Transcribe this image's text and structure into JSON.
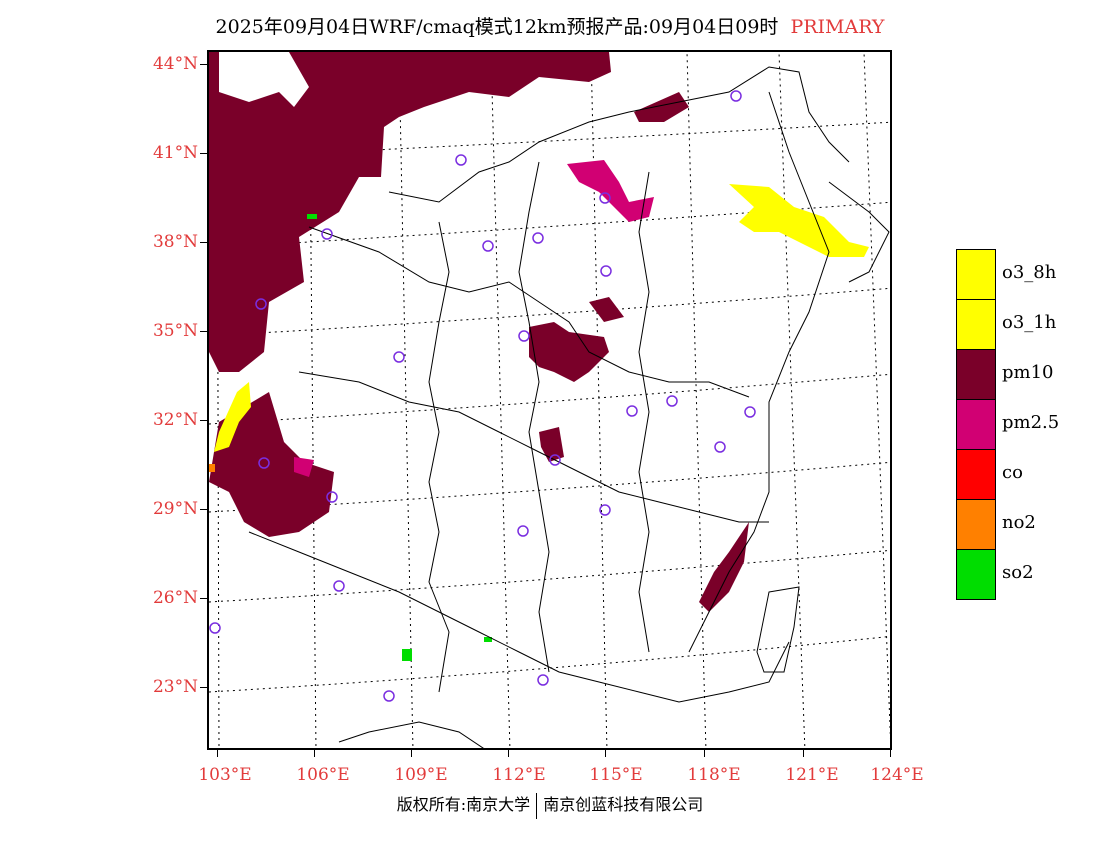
{
  "title": {
    "main": "2025年09月04日WRF/cmaq模式12km预报产品:09月04日09时",
    "tag": "PRIMARY"
  },
  "latitude_labels": [
    "44°N",
    "41°N",
    "38°N",
    "35°N",
    "32°N",
    "29°N",
    "26°N",
    "23°N"
  ],
  "longitude_labels": [
    "103°E",
    "106°E",
    "109°E",
    "112°E",
    "115°E",
    "118°E",
    "121°E",
    "124°E"
  ],
  "legend": {
    "items": [
      {
        "label": "o3_8h",
        "color": "#ffff00"
      },
      {
        "label": "o3_1h",
        "color": "#ffff00"
      },
      {
        "label": "pm10",
        "color": "#7a0029"
      },
      {
        "label": "pm2.5",
        "color": "#d10073"
      },
      {
        "label": "co",
        "color": "#ff0000"
      },
      {
        "label": "no2",
        "color": "#ff8000"
      },
      {
        "label": "so2",
        "color": "#00dd00"
      }
    ]
  },
  "footer": {
    "left": "版权所有:南京大学",
    "right": "南京创蓝科技有限公司"
  },
  "colors": {
    "accent_label": "#e23b3b",
    "station_marker": "#7a2ee0"
  }
}
